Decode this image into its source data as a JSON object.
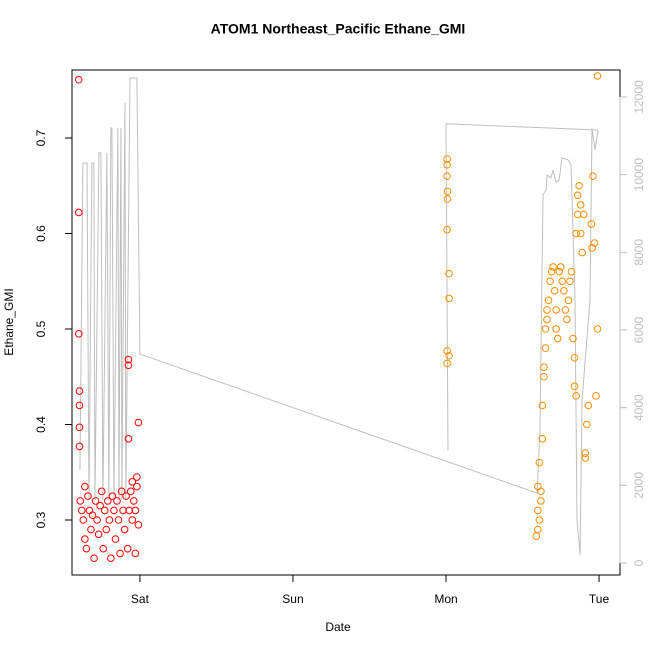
{
  "chart_data": {
    "type": "scatter",
    "title": "ATOM1 Northeast_Pacific Ethane_GMI",
    "xlabel": "Date",
    "ylabel": "Ethane_GMI",
    "xlim": [
      -0.444,
      3.137
    ],
    "ylim": [
      0.2424,
      0.7712
    ],
    "y2lim": [
      -309,
      12695
    ],
    "xticks": [
      {
        "value": 0,
        "label": "Sat"
      },
      {
        "value": 1,
        "label": "Sun"
      },
      {
        "value": 2,
        "label": "Mon"
      },
      {
        "value": 3,
        "label": "Tue"
      }
    ],
    "yticks": [
      0.3,
      0.4,
      0.5,
      0.6,
      0.7
    ],
    "y2ticks": [
      0,
      2000,
      4000,
      6000,
      8000,
      10000,
      12000
    ],
    "series": [
      {
        "color": "#ff0000",
        "x": [
          -0.4,
          -0.4,
          -0.4,
          -0.395,
          -0.395,
          -0.395,
          -0.395,
          -0.39,
          -0.38,
          -0.37,
          -0.36,
          -0.36,
          -0.35,
          -0.34,
          -0.33,
          -0.32,
          -0.31,
          -0.3,
          -0.29,
          -0.28,
          -0.27,
          -0.26,
          -0.25,
          -0.24,
          -0.23,
          -0.22,
          -0.21,
          -0.2,
          -0.19,
          -0.18,
          -0.17,
          -0.16,
          -0.15,
          -0.14,
          -0.13,
          -0.12,
          -0.11,
          -0.1,
          -0.09,
          -0.08,
          -0.075,
          -0.075,
          -0.075,
          -0.07,
          -0.06,
          -0.05,
          -0.04,
          -0.03,
          -0.02,
          -0.02,
          -0.01,
          -0.01,
          -0.03,
          -0.05
        ],
        "values": [
          0.761,
          0.622,
          0.495,
          0.435,
          0.42,
          0.397,
          0.377,
          0.32,
          0.31,
          0.3,
          0.28,
          0.335,
          0.27,
          0.325,
          0.31,
          0.29,
          0.305,
          0.26,
          0.32,
          0.3,
          0.285,
          0.315,
          0.33,
          0.27,
          0.31,
          0.29,
          0.32,
          0.3,
          0.26,
          0.325,
          0.31,
          0.28,
          0.32,
          0.3,
          0.265,
          0.33,
          0.31,
          0.29,
          0.325,
          0.27,
          0.468,
          0.462,
          0.385,
          0.31,
          0.33,
          0.3,
          0.32,
          0.31,
          0.335,
          0.345,
          0.402,
          0.295,
          0.265,
          0.34
        ]
      },
      {
        "color": "#ff8c00",
        "x": [
          2.007,
          2.007,
          2.007,
          2.01,
          2.01,
          2.007,
          2.02,
          2.02,
          2.007,
          2.02,
          2.007,
          2.59,
          2.6,
          2.6,
          2.6,
          2.61,
          2.61,
          2.62,
          2.62,
          2.63,
          2.63,
          2.64,
          2.64,
          2.65,
          2.65,
          2.66,
          2.66,
          2.67,
          2.68,
          2.69,
          2.7,
          2.71,
          2.72,
          2.72,
          2.73,
          2.74,
          2.75,
          2.76,
          2.77,
          2.78,
          2.79,
          2.8,
          2.81,
          2.82,
          2.83,
          2.84,
          2.84,
          2.85,
          2.85,
          2.86,
          2.86,
          2.87,
          2.88,
          2.88,
          2.89,
          2.9,
          2.91,
          2.91,
          2.92,
          2.93,
          2.95,
          2.96,
          2.97,
          2.98,
          2.99,
          2.99,
          2.955
        ],
        "values": [
          0.678,
          0.672,
          0.66,
          0.644,
          0.636,
          0.604,
          0.558,
          0.532,
          0.477,
          0.472,
          0.464,
          0.283,
          0.29,
          0.31,
          0.335,
          0.36,
          0.3,
          0.32,
          0.33,
          0.385,
          0.42,
          0.45,
          0.46,
          0.48,
          0.5,
          0.51,
          0.52,
          0.53,
          0.55,
          0.56,
          0.565,
          0.54,
          0.52,
          0.5,
          0.49,
          0.56,
          0.565,
          0.55,
          0.54,
          0.52,
          0.51,
          0.53,
          0.55,
          0.56,
          0.49,
          0.47,
          0.44,
          0.43,
          0.6,
          0.62,
          0.64,
          0.65,
          0.63,
          0.6,
          0.58,
          0.62,
          0.37,
          0.365,
          0.4,
          0.42,
          0.61,
          0.66,
          0.59,
          0.43,
          0.5,
          0.765,
          0.585
        ]
      },
      {
        "type": "line",
        "color": "#bebebe",
        "axis": "y2",
        "x": [
          -0.392,
          -0.373,
          -0.346,
          -0.333,
          -0.314,
          -0.301,
          -0.294,
          -0.268,
          -0.255,
          -0.242,
          -0.216,
          -0.203,
          -0.19,
          -0.183,
          -0.17,
          -0.144,
          -0.137,
          -0.124,
          -0.118,
          -0.098,
          -0.092,
          -0.065,
          -0.02,
          0,
          2.595,
          2.614,
          2.634,
          2.654,
          2.66,
          2.686,
          2.699,
          2.719,
          2.739,
          2.758,
          2.797,
          2.817,
          2.843,
          2.856,
          2.876,
          2.889,
          2.941,
          2.954,
          2.974,
          2.993,
          null,
          2.013,
          2.0,
          2.993
        ],
        "values": [
          2400,
          10300,
          10300,
          1620,
          10300,
          10300,
          1620,
          10560,
          10560,
          1620,
          10560,
          1620,
          11200,
          11200,
          1620,
          11200,
          1620,
          11200,
          1620,
          11850,
          1620,
          12490,
          12490,
          5380,
          1800,
          3430,
          9480,
          9610,
          9990,
          9920,
          10120,
          9810,
          9860,
          10430,
          10380,
          10250,
          6770,
          1110,
          210,
          4200,
          6770,
          11200,
          10640,
          11150,
          null,
          2910,
          11310,
          11150
        ]
      }
    ]
  }
}
